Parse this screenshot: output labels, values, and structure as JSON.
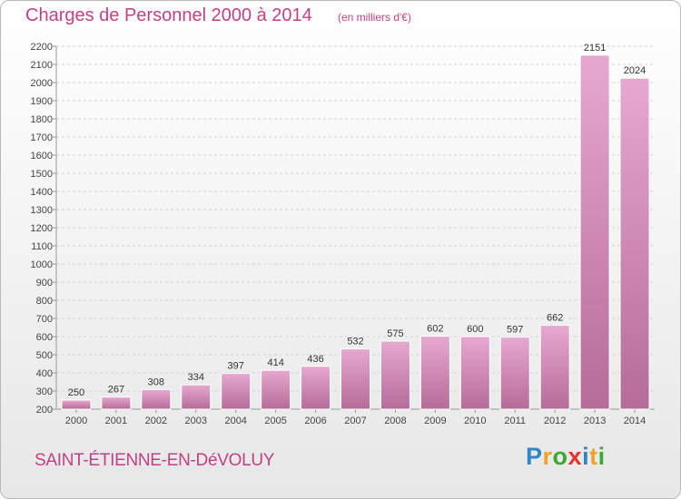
{
  "header": {
    "title": "Charges de Personnel 2000 à 2014",
    "unit_note": "(en milliers d'€)"
  },
  "footer": {
    "commune": "SAINT-ÉTIENNE-EN-DéVOLUY",
    "brand": "Proxiti"
  },
  "colors": {
    "text_accent": "#c23f86",
    "bar_top": "#e7a8cf",
    "bar_bottom": "#b56c98",
    "grid": "#d3d3d3",
    "brand_letters": [
      "#2f86c8",
      "#f0a32b",
      "#3aaa35",
      "#e5322d",
      "#2f86c8",
      "#f0a32b",
      "#3aaa35"
    ]
  },
  "chart_data": {
    "type": "bar",
    "title": "Charges de Personnel 2000 à 2014",
    "subtitle": "(en milliers d'€)",
    "xlabel": "",
    "ylabel": "",
    "categories": [
      "2000",
      "2001",
      "2002",
      "2003",
      "2004",
      "2005",
      "2006",
      "2007",
      "2008",
      "2009",
      "2010",
      "2011",
      "2012",
      "2013",
      "2014"
    ],
    "values": [
      250,
      267,
      308,
      334,
      397,
      414,
      436,
      532,
      575,
      602,
      600,
      597,
      662,
      2151,
      2024
    ],
    "ylim": [
      200,
      2200
    ],
    "yticks": [
      200,
      300,
      400,
      500,
      600,
      700,
      800,
      900,
      1000,
      1100,
      1200,
      1300,
      1400,
      1500,
      1600,
      1700,
      1800,
      1900,
      2000,
      2100,
      2200
    ],
    "grid": true,
    "grid_axis": "y",
    "grid_style": "dashed",
    "legend": "none",
    "data_labels": true
  }
}
